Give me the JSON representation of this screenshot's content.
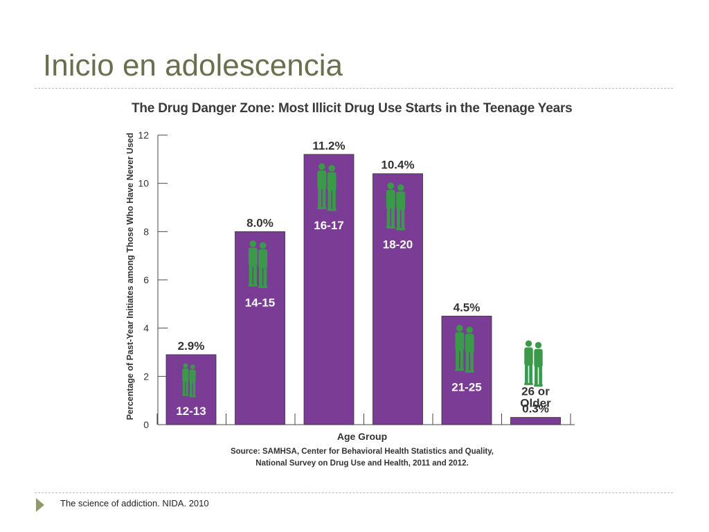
{
  "slide": {
    "title": "Inicio en adolescencia",
    "footer": "The science of addiction. NIDA. 2010"
  },
  "chart_data": {
    "type": "bar",
    "title": "The Drug Danger Zone: Most Illicit Drug Use Starts in the Teenage Years",
    "categories": [
      "12-13",
      "14-15",
      "16-17",
      "18-20",
      "21-25",
      "26 or Older"
    ],
    "values": [
      2.9,
      8.0,
      11.2,
      10.4,
      4.5,
      0.3
    ],
    "value_labels": [
      "2.9%",
      "8.0%",
      "11.2%",
      "10.4%",
      "4.5%",
      "0.3%"
    ],
    "xlabel": "Age Group",
    "ylabel": "Percentage of Past-Year Initiates among Those Who Have Never Used",
    "ylim": [
      0,
      12
    ],
    "yticks": [
      0,
      2,
      4,
      6,
      8,
      10,
      12
    ],
    "source": [
      "Source: SAMHSA, Center for Behavioral Health Statistics and Quality,",
      "National Survey on Drug Use and Health, 2011 and 2012."
    ],
    "grid": false,
    "bar_color": "#7b3c96",
    "icon_color": "#3a9a4a",
    "icon": "teen-pair-icon"
  }
}
